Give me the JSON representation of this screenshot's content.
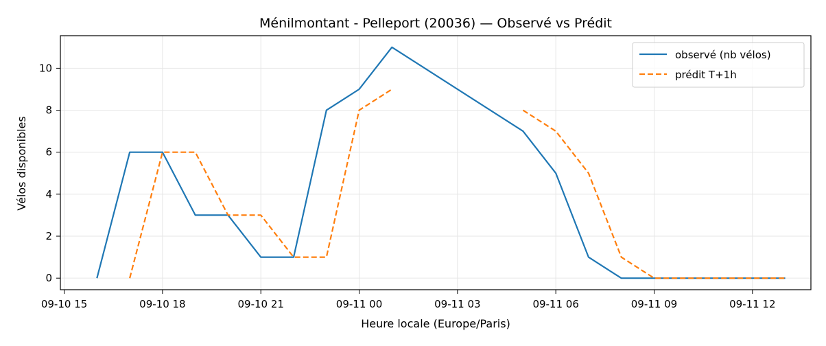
{
  "chart_data": {
    "type": "line",
    "title": "Ménilmontant - Pelleport (20036) — Observé vs Prédit",
    "xlabel": "Heure locale (Europe/Paris)",
    "ylabel": "Vélos disponibles",
    "x_ticks": [
      "09-10 15",
      "09-10 18",
      "09-10 21",
      "09-11 00",
      "09-11 03",
      "09-11 06",
      "09-11 09",
      "09-11 12"
    ],
    "y_ticks": [
      "0",
      "2",
      "4",
      "6",
      "8",
      "10"
    ],
    "ylim": [
      -0.55,
      11.55
    ],
    "xlim": [
      "2024-09-10 14:53",
      "2024-09-11 13:47"
    ],
    "grid": true,
    "legend_position": "top-right",
    "series": [
      {
        "name": "observé (nb vélos)",
        "color": "#1f77b4",
        "style": "solid",
        "points": [
          [
            "2024-09-10 16:00",
            0
          ],
          [
            "2024-09-10 17:00",
            6
          ],
          [
            "2024-09-10 18:00",
            6
          ],
          [
            "2024-09-10 19:00",
            3
          ],
          [
            "2024-09-10 20:00",
            3
          ],
          [
            "2024-09-10 21:00",
            1
          ],
          [
            "2024-09-10 22:00",
            1
          ],
          [
            "2024-09-10 23:00",
            8
          ],
          [
            "2024-09-11 00:00",
            9
          ],
          [
            "2024-09-11 01:00",
            11
          ],
          [
            "2024-09-11 05:00",
            7
          ],
          [
            "2024-09-11 06:00",
            5
          ],
          [
            "2024-09-11 07:00",
            1
          ],
          [
            "2024-09-11 08:00",
            0
          ],
          [
            "2024-09-11 09:00",
            0
          ],
          [
            "2024-09-11 10:00",
            0
          ],
          [
            "2024-09-11 11:00",
            0
          ],
          [
            "2024-09-11 12:00",
            0
          ],
          [
            "2024-09-11 13:00",
            0
          ]
        ]
      },
      {
        "name": "prédit T+1h",
        "color": "#ff7f0e",
        "style": "dashed",
        "segments": [
          [
            [
              "2024-09-10 17:00",
              0
            ],
            [
              "2024-09-10 18:00",
              6
            ],
            [
              "2024-09-10 19:00",
              6
            ],
            [
              "2024-09-10 20:00",
              3
            ],
            [
              "2024-09-10 21:00",
              3
            ],
            [
              "2024-09-10 22:00",
              1
            ],
            [
              "2024-09-10 23:00",
              1
            ],
            [
              "2024-09-11 00:00",
              8
            ],
            [
              "2024-09-11 01:00",
              9
            ]
          ],
          [
            [
              "2024-09-11 05:00",
              8
            ],
            [
              "2024-09-11 06:00",
              7
            ],
            [
              "2024-09-11 07:00",
              5
            ],
            [
              "2024-09-11 08:00",
              1
            ],
            [
              "2024-09-11 09:00",
              0
            ],
            [
              "2024-09-11 10:00",
              0
            ],
            [
              "2024-09-11 11:00",
              0
            ],
            [
              "2024-09-11 12:00",
              0
            ],
            [
              "2024-09-11 13:00",
              0
            ]
          ]
        ]
      }
    ]
  }
}
